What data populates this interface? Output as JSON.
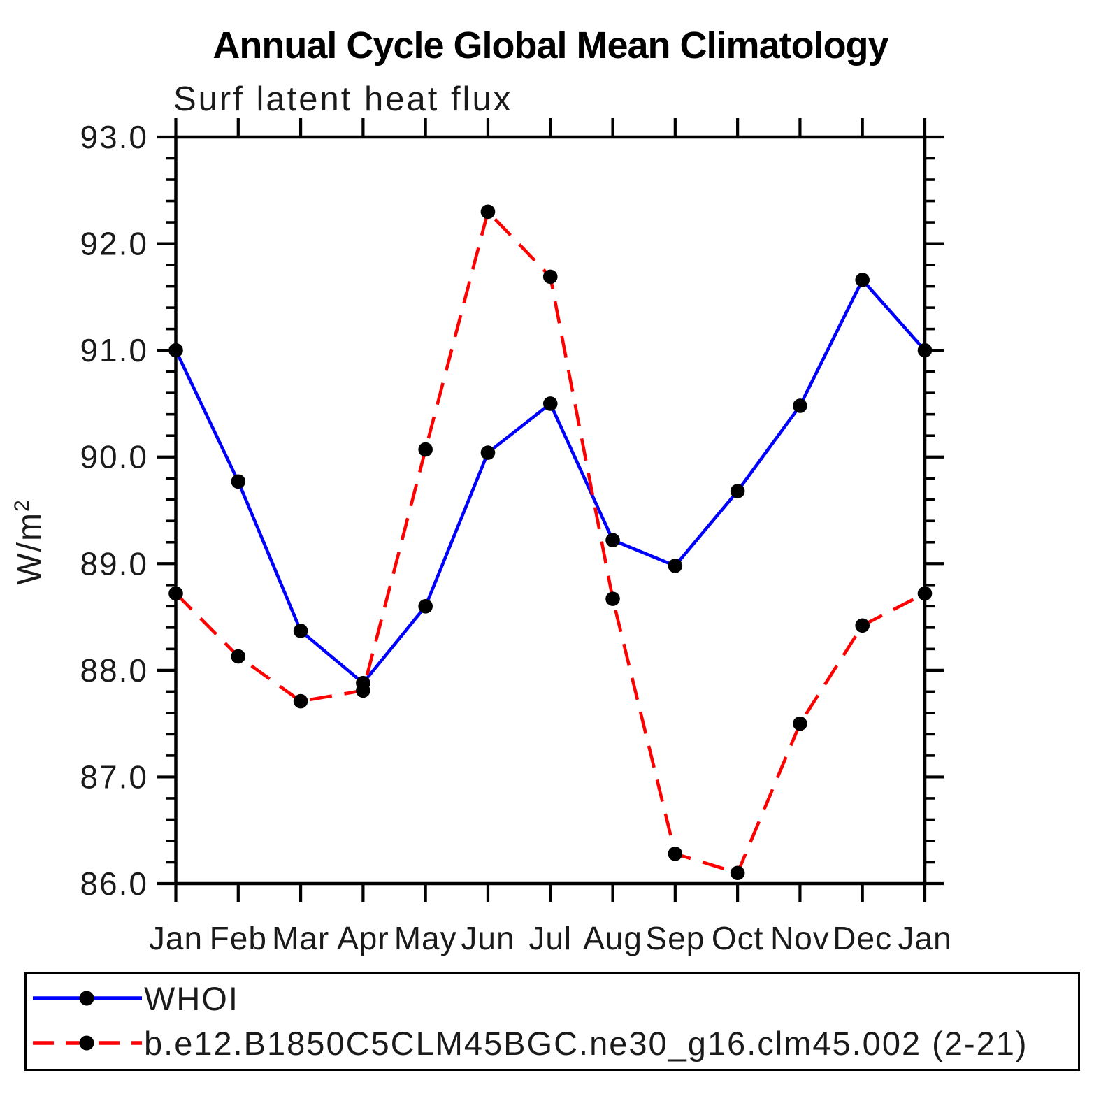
{
  "title": "Annual Cycle Global Mean Climatology",
  "subtitle": "Surf latent heat flux",
  "y_axis_title": {
    "base": "W/m",
    "exponent": "2"
  },
  "colors": {
    "axis": "#000000",
    "marker": "#000000",
    "whoi_line": "#0000ff",
    "model_line": "#ff0000"
  },
  "legend": {
    "items": [
      {
        "label": "WHOI",
        "color": "#0000ff",
        "style": "solid"
      },
      {
        "label": "b.e12.B1850C5CLM45BGC.ne30_g16.clm45.002 (2-21)",
        "color": "#ff0000",
        "style": "dashed"
      }
    ]
  },
  "chart_data": {
    "type": "line",
    "x_tick_labels": [
      "Jan",
      "Feb",
      "Mar",
      "Apr",
      "May",
      "Jun",
      "Jul",
      "Aug",
      "Sep",
      "Oct",
      "Nov",
      "Dec",
      "Jan"
    ],
    "xlabel": "",
    "ylabel": "W/m2",
    "ylim": [
      86.0,
      93.0
    ],
    "y_ticks": [
      86.0,
      87.0,
      88.0,
      89.0,
      90.0,
      91.0,
      92.0,
      93.0
    ],
    "y_tick_labels": [
      "86.0",
      "87.0",
      "88.0",
      "89.0",
      "90.0",
      "91.0",
      "92.0",
      "93.0"
    ],
    "y_minor_step": 0.2,
    "grid": false,
    "legend_position": "bottom",
    "marker": "filled-circle",
    "marker_color": "#000000",
    "series": [
      {
        "name": "WHOI",
        "color": "#0000ff",
        "dash": "solid",
        "values": [
          91.0,
          89.77,
          88.37,
          87.88,
          88.6,
          90.04,
          90.5,
          89.22,
          88.98,
          89.68,
          90.48,
          91.66,
          91.0
        ]
      },
      {
        "name": "b.e12.B1850C5CLM45BGC.ne30_g16.clm45.002 (2-21)",
        "color": "#ff0000",
        "dash": "dashed",
        "values": [
          88.72,
          88.13,
          87.71,
          87.81,
          90.07,
          92.3,
          91.69,
          88.67,
          86.28,
          86.1,
          87.5,
          88.42,
          88.72
        ]
      }
    ]
  }
}
